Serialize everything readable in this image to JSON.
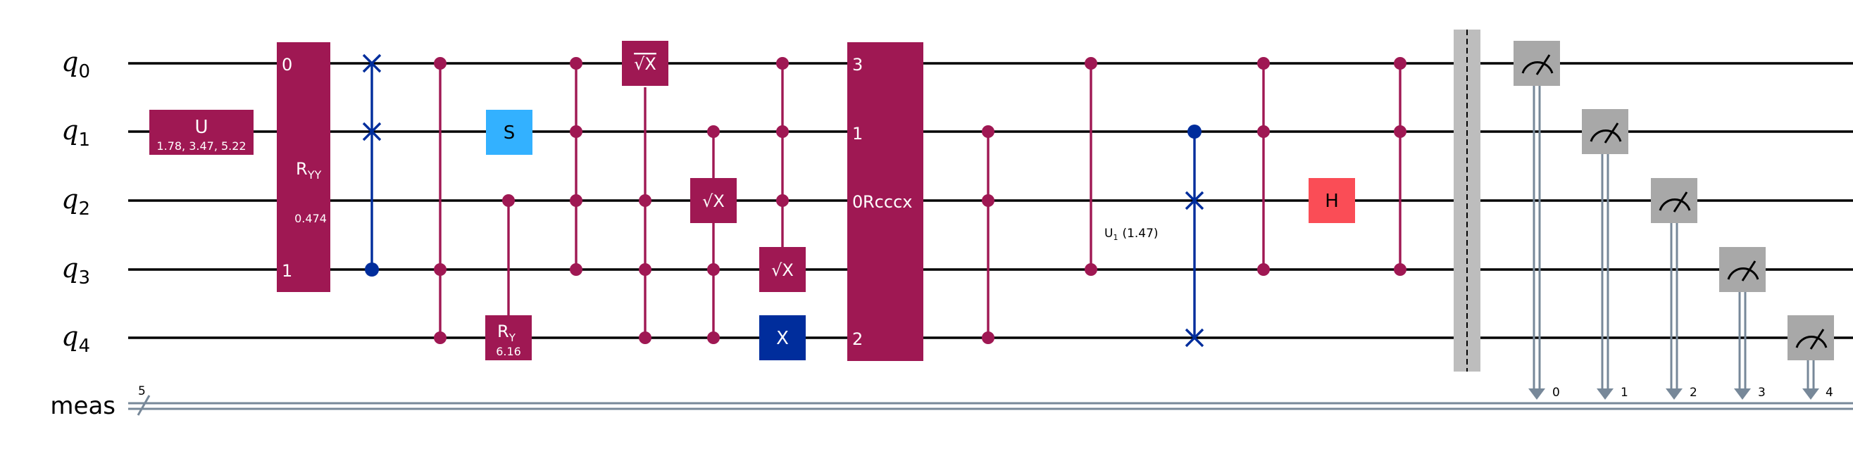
{
  "qubits": [
    {
      "name": "q",
      "index": "0"
    },
    {
      "name": "q",
      "index": "1"
    },
    {
      "name": "q",
      "index": "2"
    },
    {
      "name": "q",
      "index": "3"
    },
    {
      "name": "q",
      "index": "4"
    }
  ],
  "classical_register": {
    "name": "meas",
    "size": "5"
  },
  "colors": {
    "multi_qubit": "#9f1853",
    "swap": "#002d9c",
    "single_s": "#33b1ff",
    "hadamard": "#fa4d56",
    "x_gate": "#002d9c",
    "measure": "#a8a8a8",
    "barrier": "#bdbdbd",
    "classical_wire": "#778899"
  },
  "gates": {
    "u": {
      "label": "U",
      "params": "1.78, 3.47, 5.22"
    },
    "ryy": {
      "label": "R",
      "sub": "YY",
      "param": "0.474",
      "port_top": "0",
      "port_bottom": "1"
    },
    "s": {
      "label": "S"
    },
    "ry": {
      "label": "R",
      "sub": "Y",
      "param": "6.16"
    },
    "sx_label": "√X",
    "x": {
      "label": "X"
    },
    "rcccx": {
      "label": "Rcccx",
      "ports": [
        "3",
        "1",
        "0",
        "2"
      ]
    },
    "u1": {
      "label": "U",
      "sub": "1",
      "param": "(1.47)"
    },
    "h": {
      "label": "H"
    }
  },
  "measure_bits": [
    "0",
    "1",
    "2",
    "3",
    "4"
  ]
}
